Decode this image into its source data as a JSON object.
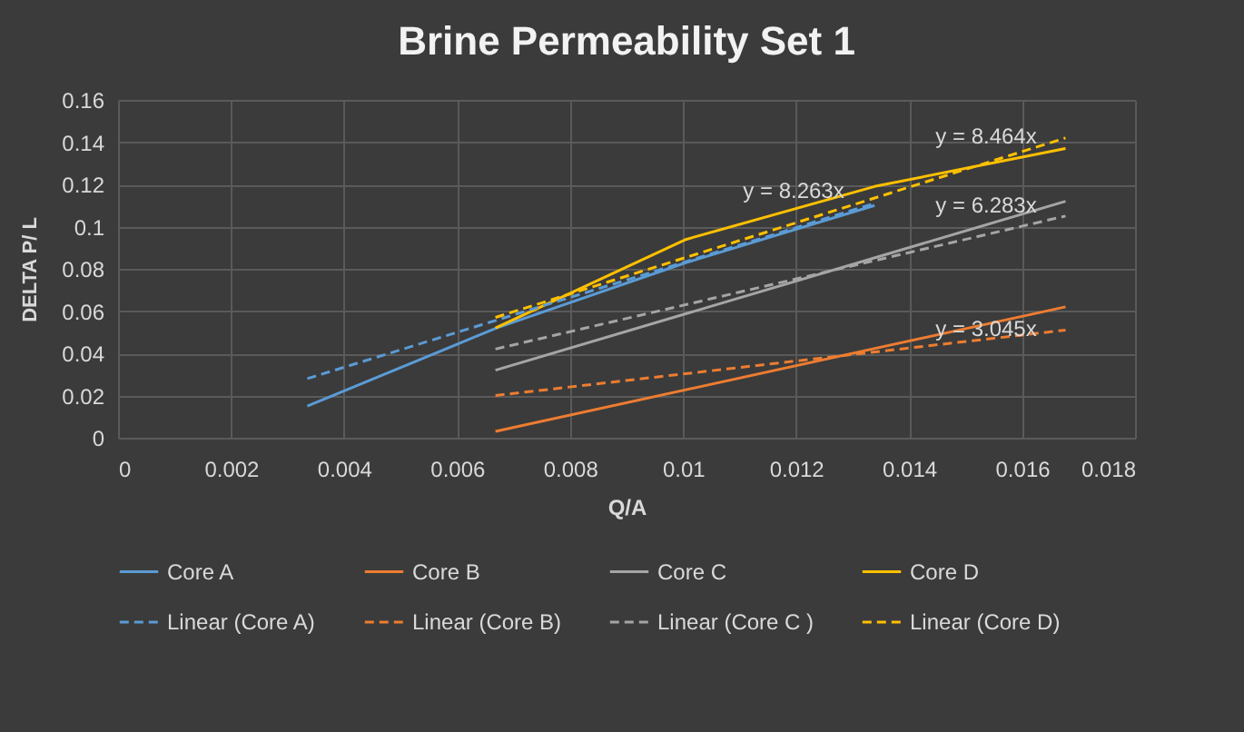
{
  "chart_data": {
    "type": "line",
    "title": "Brine Permeability Set 1",
    "xlabel": "Q/A",
    "ylabel": "DELTA P/ L",
    "xlim": [
      0,
      0.018
    ],
    "xticks": [
      0,
      0.002,
      0.004,
      0.006,
      0.008,
      0.01,
      0.012,
      0.014,
      0.016,
      0.018
    ],
    "ylim": [
      0,
      0.16
    ],
    "yticks": [
      0,
      0.02,
      0.04,
      0.06,
      0.08,
      0.1,
      0.12,
      0.14,
      0.16
    ],
    "grid": true,
    "legend": "bottom",
    "marker": "none",
    "series": [
      {
        "name": "Core A",
        "color": "#5b9bd5",
        "line_style": "solid",
        "x": [
          0.00335,
          0.0067,
          0.01006,
          0.01339
        ],
        "values": [
          0.015,
          0.052,
          0.083,
          0.11
        ]
      },
      {
        "name": "Core B",
        "color": "#ed7d31",
        "line_style": "solid",
        "x": [
          0.00668,
          0.01677
        ],
        "values": [
          0.003,
          0.062
        ]
      },
      {
        "name": "Core C",
        "color": "#a5a5a5",
        "line_style": "solid",
        "x": [
          0.00668,
          0.01677
        ],
        "values": [
          0.032,
          0.112
        ]
      },
      {
        "name": "Core D",
        "color": "#ffc000",
        "line_style": "solid",
        "x": [
          0.00668,
          0.01006,
          0.01339,
          0.01677
        ],
        "values": [
          0.052,
          0.094,
          0.119,
          0.137
        ]
      },
      {
        "name": "Linear (Core A)",
        "type": "line",
        "color": "#5b9bd5",
        "line_style": "dashed",
        "x": [
          0.00335,
          0.01339
        ],
        "values": [
          0.028,
          0.111
        ]
      },
      {
        "name": "Linear (Core B)",
        "type": "line",
        "color": "#ed7d31",
        "line_style": "dashed",
        "x": [
          0.00668,
          0.01677
        ],
        "values": [
          0.02,
          0.051
        ]
      },
      {
        "name": "Linear (Core C )",
        "type": "line",
        "color": "#a5a5a5",
        "line_style": "dashed",
        "x": [
          0.00668,
          0.01677
        ],
        "values": [
          0.042,
          0.105
        ]
      },
      {
        "name": "Linear (Core D)",
        "type": "line",
        "color": "#ffc000",
        "line_style": "dashed",
        "x": [
          0.00668,
          0.01677
        ],
        "values": [
          0.057,
          0.142
        ]
      }
    ],
    "annotations": [
      "y = 8.464x",
      "y = 8.263x",
      "y = 6.283x",
      "y = 3.045x"
    ]
  }
}
